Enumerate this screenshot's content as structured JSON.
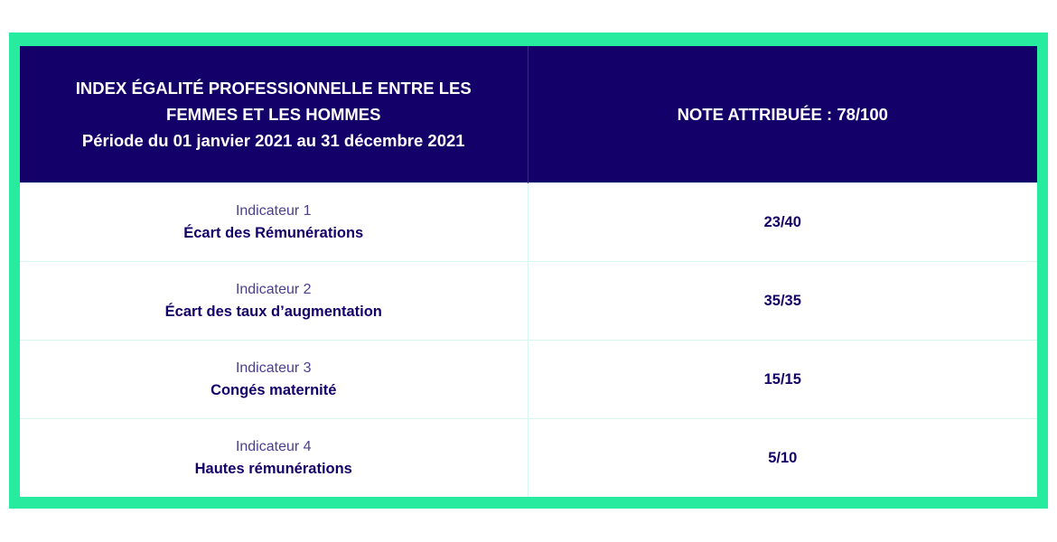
{
  "colors": {
    "frame_green": "#27ec9f",
    "header_bg": "#140069",
    "header_text": "#ffffff",
    "body_text": "#140069",
    "label_text": "#4a3f91",
    "row_divider": "#d6f8ef"
  },
  "header": {
    "title_line1": "INDEX ÉGALITÉ PROFESSIONNELLE ENTRE LES",
    "title_line2": "FEMMES ET LES HOMMES",
    "period": "Période du 01 janvier 2021 au 31 décembre 2021",
    "note": "NOTE ATTRIBUÉE : 78/100"
  },
  "indicators": [
    {
      "label": "Indicateur 1",
      "title": "Écart des Rémunérations",
      "score": "23/40"
    },
    {
      "label": "Indicateur 2",
      "title": "Écart des taux d’augmentation",
      "score": "35/35"
    },
    {
      "label": "Indicateur 3",
      "title": "Congés maternité",
      "score": "15/15"
    },
    {
      "label": "Indicateur 4",
      "title": "Hautes rémunérations",
      "score": "5/10"
    }
  ]
}
